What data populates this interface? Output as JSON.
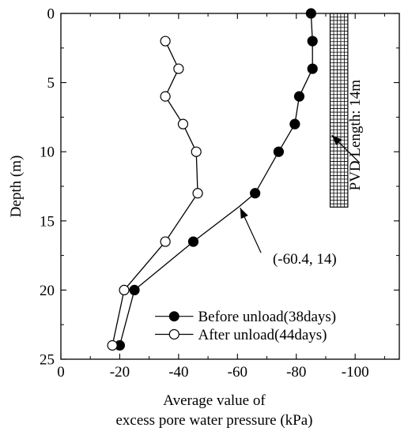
{
  "chart_data": {
    "type": "line",
    "xlabel_line1": "Average value of",
    "xlabel_line2": "excess pore water pressure (kPa)",
    "ylabel": "Depth (m)",
    "xlim": [
      0,
      -115
    ],
    "ylim": [
      0,
      25
    ],
    "y_inverted": true,
    "x_ticks": [
      {
        "value": 0,
        "label": "0"
      },
      {
        "value": -20,
        "label": "-20"
      },
      {
        "value": -40,
        "label": "-40"
      },
      {
        "value": -60,
        "label": "-60"
      },
      {
        "value": -80,
        "label": "-80"
      },
      {
        "value": -100,
        "label": "-100"
      }
    ],
    "y_ticks": [
      {
        "value": 0,
        "label": "0"
      },
      {
        "value": 5,
        "label": "5"
      },
      {
        "value": 10,
        "label": "10"
      },
      {
        "value": 15,
        "label": "15"
      },
      {
        "value": 20,
        "label": "20"
      },
      {
        "value": 25,
        "label": "25"
      }
    ],
    "series": [
      {
        "name": "Before unload(38days)",
        "marker": "filled-circle",
        "color": "#000000",
        "points": [
          {
            "x": -85,
            "y": 0
          },
          {
            "x": -85.5,
            "y": 2
          },
          {
            "x": -85.5,
            "y": 4
          },
          {
            "x": -81,
            "y": 6
          },
          {
            "x": -79.5,
            "y": 8
          },
          {
            "x": -74,
            "y": 10
          },
          {
            "x": -66,
            "y": 13
          },
          {
            "x": -60.4,
            "y": 14
          },
          {
            "x": -45,
            "y": 16.5
          },
          {
            "x": -25,
            "y": 20
          },
          {
            "x": -20,
            "y": 24
          }
        ],
        "marker_skip": [
          7
        ]
      },
      {
        "name": "After unload(44days)",
        "marker": "open-circle",
        "color": "#000000",
        "points": [
          {
            "x": -35.5,
            "y": 2
          },
          {
            "x": -40,
            "y": 4
          },
          {
            "x": -35.5,
            "y": 6
          },
          {
            "x": -41.5,
            "y": 8
          },
          {
            "x": -46,
            "y": 10
          },
          {
            "x": -46.5,
            "y": 13
          },
          {
            "x": -35.5,
            "y": 16.5
          },
          {
            "x": -21.5,
            "y": 20
          },
          {
            "x": -17.5,
            "y": 24
          }
        ]
      }
    ],
    "pvd": {
      "label": "PVD Length: 14m",
      "x_from": -91.5,
      "x_to": -97.5,
      "depth_from": 0,
      "depth_to": 14
    },
    "annotations": [
      {
        "text": "(-60.4, 14)",
        "target": {
          "x": -60.4,
          "y": 14
        }
      },
      {
        "target": {
          "x": -91.5,
          "y": 8.8
        }
      }
    ],
    "legend": {
      "placement": "bottom-right",
      "entries": [
        "Before unload(38days)",
        "After unload(44days)"
      ]
    },
    "grid": false
  }
}
